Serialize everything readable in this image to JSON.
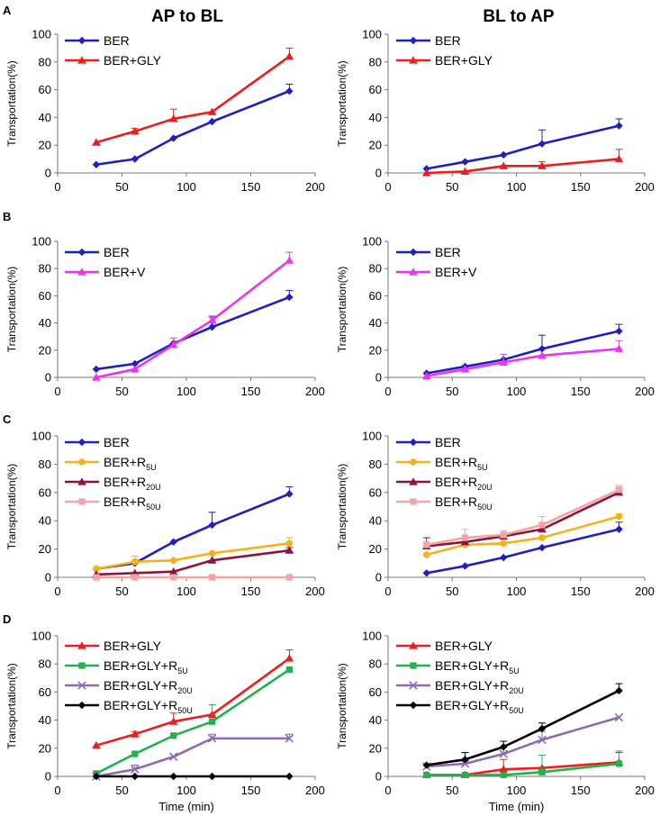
{
  "headers": {
    "left": "AP to BL",
    "right": "BL to AP"
  },
  "panel_labels": [
    "A",
    "B",
    "C",
    "D"
  ],
  "colors": {
    "BER": "#1f1fbf",
    "GLY": "#ee1c1c",
    "V": "#ee33ee",
    "R5U": "#f5b21a",
    "R20U": "#8b1538",
    "R50U": "#f4a4a4",
    "GLY_R5U": "#22b14c",
    "GLY_R20U": "#8c6bb1",
    "GLY_R50U": "#000000"
  },
  "chart_data": [
    {
      "id": "A-left",
      "type": "line",
      "panel": "A",
      "column": "AP to BL",
      "xlabel": "",
      "ylabel": "Transportation(%)",
      "xlim": [
        0,
        200
      ],
      "ylim": [
        0,
        100
      ],
      "xticks": [
        0,
        50,
        100,
        150,
        200
      ],
      "yticks": [
        0,
        20,
        40,
        60,
        80,
        100
      ],
      "x": [
        30,
        60,
        90,
        120,
        180
      ],
      "series": [
        {
          "name": "BER",
          "sub": "",
          "color": "#1f1fbf",
          "marker": "diamond",
          "values": [
            6,
            10,
            25,
            37,
            59
          ],
          "errors": [
            0,
            0,
            0,
            0,
            5
          ]
        },
        {
          "name": "BER+GLY",
          "sub": "",
          "color": "#ee1c1c",
          "marker": "triangle",
          "values": [
            22,
            30,
            39,
            44,
            84
          ],
          "errors": [
            0,
            2,
            7,
            0,
            6
          ]
        }
      ]
    },
    {
      "id": "A-right",
      "type": "line",
      "panel": "A",
      "column": "BL to AP",
      "xlabel": "",
      "ylabel": "Transportation(%)",
      "xlim": [
        0,
        200
      ],
      "ylim": [
        0,
        100
      ],
      "xticks": [
        0,
        50,
        100,
        150,
        200
      ],
      "yticks": [
        0,
        20,
        40,
        60,
        80,
        100
      ],
      "x": [
        30,
        60,
        90,
        120,
        180
      ],
      "series": [
        {
          "name": "BER",
          "sub": "",
          "color": "#1f1fbf",
          "marker": "diamond",
          "values": [
            3,
            8,
            13,
            21,
            34
          ],
          "errors": [
            0,
            0,
            0,
            10,
            5
          ]
        },
        {
          "name": "BER+GLY",
          "sub": "",
          "color": "#ee1c1c",
          "marker": "triangle",
          "values": [
            0,
            1,
            5,
            5,
            10
          ],
          "errors": [
            0,
            0,
            0,
            3,
            7
          ]
        }
      ]
    },
    {
      "id": "B-left",
      "type": "line",
      "panel": "B",
      "column": "AP to BL",
      "xlabel": "",
      "ylabel": "Transportation(%)",
      "xlim": [
        0,
        200
      ],
      "ylim": [
        0,
        100
      ],
      "xticks": [
        0,
        50,
        100,
        150,
        200
      ],
      "yticks": [
        0,
        20,
        40,
        60,
        80,
        100
      ],
      "x": [
        30,
        60,
        90,
        120,
        180
      ],
      "series": [
        {
          "name": "BER",
          "sub": "",
          "color": "#1f1fbf",
          "marker": "diamond",
          "values": [
            6,
            10,
            25,
            37,
            59
          ],
          "errors": [
            0,
            0,
            0,
            8,
            5
          ]
        },
        {
          "name": "BER+V",
          "sub": "",
          "color": "#ee33ee",
          "marker": "triangle",
          "values": [
            0,
            6,
            24,
            42,
            86
          ],
          "errors": [
            0,
            0,
            5,
            2,
            6
          ]
        }
      ]
    },
    {
      "id": "B-right",
      "type": "line",
      "panel": "B",
      "column": "BL to AP",
      "xlabel": "",
      "ylabel": "Transportation(%)",
      "xlim": [
        0,
        200
      ],
      "ylim": [
        0,
        100
      ],
      "xticks": [
        0,
        50,
        100,
        150,
        200
      ],
      "yticks": [
        0,
        20,
        40,
        60,
        80,
        100
      ],
      "x": [
        30,
        60,
        90,
        120,
        180
      ],
      "series": [
        {
          "name": "BER",
          "sub": "",
          "color": "#1f1fbf",
          "marker": "diamond",
          "values": [
            3,
            8,
            13,
            21,
            34
          ],
          "errors": [
            0,
            0,
            0,
            10,
            5
          ]
        },
        {
          "name": "BER+V",
          "sub": "",
          "color": "#ee33ee",
          "marker": "triangle",
          "values": [
            1,
            6,
            11,
            16,
            21
          ],
          "errors": [
            0,
            0,
            6,
            0,
            6
          ]
        }
      ]
    },
    {
      "id": "C-left",
      "type": "line",
      "panel": "C",
      "column": "AP to BL",
      "xlabel": "",
      "ylabel": "Transportation(%)",
      "xlim": [
        0,
        200
      ],
      "ylim": [
        0,
        100
      ],
      "xticks": [
        0,
        50,
        100,
        150,
        200
      ],
      "yticks": [
        0,
        20,
        40,
        60,
        80,
        100
      ],
      "x": [
        30,
        60,
        90,
        120,
        180
      ],
      "series": [
        {
          "name": "BER",
          "sub": "",
          "color": "#1f1fbf",
          "marker": "diamond",
          "values": [
            6,
            10,
            25,
            37,
            59
          ],
          "errors": [
            0,
            0,
            0,
            9,
            5
          ]
        },
        {
          "name": "BER+R",
          "sub": "5U",
          "color": "#f5b21a",
          "marker": "circle",
          "values": [
            6,
            11,
            12,
            17,
            24
          ],
          "errors": [
            0,
            4,
            0,
            0,
            4
          ]
        },
        {
          "name": "BER+R",
          "sub": "20U",
          "color": "#8b1538",
          "marker": "triangle",
          "values": [
            2,
            3,
            4,
            12,
            19
          ],
          "errors": [
            0,
            0,
            0,
            0,
            2
          ]
        },
        {
          "name": "BER+R",
          "sub": "50U",
          "color": "#f4a4a4",
          "marker": "square",
          "values": [
            0,
            0,
            0,
            0,
            0
          ],
          "errors": [
            0,
            0,
            0,
            0,
            0
          ]
        }
      ]
    },
    {
      "id": "C-right",
      "type": "line",
      "panel": "C",
      "column": "BL to AP",
      "xlabel": "",
      "ylabel": "Transportation(%)",
      "xlim": [
        0,
        200
      ],
      "ylim": [
        0,
        100
      ],
      "xticks": [
        0,
        50,
        100,
        150,
        200
      ],
      "yticks": [
        0,
        20,
        40,
        60,
        80,
        100
      ],
      "x": [
        30,
        60,
        90,
        120,
        180
      ],
      "series": [
        {
          "name": "BER",
          "sub": "",
          "color": "#1f1fbf",
          "marker": "diamond",
          "values": [
            3,
            8,
            14,
            21,
            34
          ],
          "errors": [
            0,
            0,
            0,
            0,
            5
          ]
        },
        {
          "name": "BER+R",
          "sub": "5U",
          "color": "#f5b21a",
          "marker": "circle",
          "values": [
            16,
            23,
            24,
            28,
            43
          ],
          "errors": [
            0,
            0,
            0,
            0,
            2
          ]
        },
        {
          "name": "BER+R",
          "sub": "20U",
          "color": "#8b1538",
          "marker": "triangle",
          "values": [
            22,
            25,
            29,
            34,
            60
          ],
          "errors": [
            6,
            0,
            0,
            0,
            3
          ]
        },
        {
          "name": "BER+R",
          "sub": "50U",
          "color": "#f4a4a4",
          "marker": "square",
          "values": [
            23,
            28,
            30,
            37,
            62
          ],
          "errors": [
            0,
            6,
            3,
            6,
            3
          ]
        }
      ]
    },
    {
      "id": "D-left",
      "type": "line",
      "panel": "D",
      "column": "AP to BL",
      "xlabel": "Time (min)",
      "ylabel": "Transportation(%)",
      "xlim": [
        0,
        200
      ],
      "ylim": [
        0,
        100
      ],
      "xticks": [
        0,
        50,
        100,
        150,
        200
      ],
      "yticks": [
        0,
        20,
        40,
        60,
        80,
        100
      ],
      "x": [
        30,
        60,
        90,
        120,
        180
      ],
      "series": [
        {
          "name": "BER+GLY",
          "sub": "",
          "color": "#ee1c1c",
          "marker": "triangle",
          "values": [
            22,
            30,
            39,
            44,
            84
          ],
          "errors": [
            0,
            2,
            6,
            0,
            6
          ]
        },
        {
          "name": "BER+GLY+R",
          "sub": "5U",
          "color": "#22b14c",
          "marker": "square",
          "values": [
            2,
            16,
            29,
            39,
            76
          ],
          "errors": [
            0,
            0,
            0,
            12,
            0
          ]
        },
        {
          "name": "BER+GLY+R",
          "sub": "20U",
          "color": "#8c6bb1",
          "marker": "cross",
          "values": [
            0,
            5,
            14,
            27,
            27
          ],
          "errors": [
            0,
            3,
            0,
            3,
            3
          ]
        },
        {
          "name": "BER+GLY+R",
          "sub": "50U",
          "color": "#000000",
          "marker": "diamond",
          "values": [
            0,
            0,
            0,
            0,
            0
          ],
          "errors": [
            0,
            0,
            0,
            0,
            0
          ]
        }
      ]
    },
    {
      "id": "D-right",
      "type": "line",
      "panel": "D",
      "column": "BL to AP",
      "xlabel": "Time (min)",
      "ylabel": "Transportation(%)",
      "xlim": [
        0,
        200
      ],
      "ylim": [
        0,
        100
      ],
      "xticks": [
        0,
        50,
        100,
        150,
        200
      ],
      "yticks": [
        0,
        20,
        40,
        60,
        80,
        100
      ],
      "x": [
        30,
        60,
        90,
        120,
        180
      ],
      "series": [
        {
          "name": "BER+GLY",
          "sub": "",
          "color": "#ee1c1c",
          "marker": "triangle",
          "values": [
            1,
            1,
            5,
            6,
            10
          ],
          "errors": [
            0,
            0,
            7,
            0,
            7
          ]
        },
        {
          "name": "BER+GLY+R",
          "sub": "5U",
          "color": "#22b14c",
          "marker": "square",
          "values": [
            1,
            1,
            1,
            3,
            9
          ],
          "errors": [
            0,
            0,
            0,
            12,
            9
          ]
        },
        {
          "name": "BER+GLY+R",
          "sub": "20U",
          "color": "#8c6bb1",
          "marker": "cross",
          "values": [
            7,
            9,
            16,
            26,
            42
          ],
          "errors": [
            0,
            0,
            5,
            6,
            0
          ]
        },
        {
          "name": "BER+GLY+R",
          "sub": "50U",
          "color": "#000000",
          "marker": "diamond",
          "values": [
            8,
            12,
            21,
            34,
            61
          ],
          "errors": [
            0,
            5,
            4,
            4,
            5
          ]
        }
      ]
    }
  ]
}
